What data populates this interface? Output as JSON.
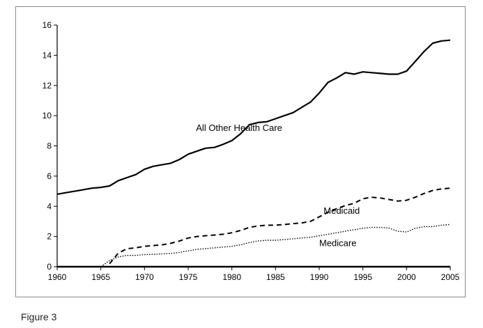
{
  "caption": "Figure 3",
  "chart_data": {
    "type": "line",
    "title": "",
    "xlabel": "",
    "ylabel": "",
    "xlim": [
      1960,
      2005
    ],
    "ylim": [
      0,
      16
    ],
    "xticks": [
      1960,
      1965,
      1970,
      1975,
      1980,
      1985,
      1990,
      1995,
      2000,
      2005
    ],
    "yticks": [
      0,
      2,
      4,
      6,
      8,
      10,
      12,
      14,
      16
    ],
    "grid": false,
    "legend": "none",
    "series": [
      {
        "name": "All Other Health Care",
        "style": "solid",
        "x": [
          1960,
          1961,
          1962,
          1963,
          1964,
          1965,
          1966,
          1967,
          1968,
          1969,
          1970,
          1971,
          1972,
          1973,
          1974,
          1975,
          1976,
          1977,
          1978,
          1979,
          1980,
          1981,
          1982,
          1983,
          1984,
          1985,
          1986,
          1987,
          1988,
          1989,
          1990,
          1991,
          1992,
          1993,
          1994,
          1995,
          1996,
          1997,
          1998,
          1999,
          2000,
          2001,
          2002,
          2003,
          2004,
          2005
        ],
        "y": [
          4.8,
          4.9,
          5.0,
          5.1,
          5.2,
          5.25,
          5.35,
          5.7,
          5.9,
          6.1,
          6.45,
          6.65,
          6.75,
          6.85,
          7.1,
          7.45,
          7.65,
          7.85,
          7.9,
          8.1,
          8.35,
          8.8,
          9.4,
          9.55,
          9.6,
          9.8,
          10.0,
          10.2,
          10.55,
          10.9,
          11.5,
          12.2,
          12.5,
          12.85,
          12.75,
          12.9,
          12.85,
          12.8,
          12.75,
          12.75,
          12.95,
          13.6,
          14.25,
          14.8,
          14.95,
          15.0
        ]
      },
      {
        "name": "Medicaid",
        "style": "dashed",
        "x": [
          1966,
          1967,
          1968,
          1969,
          1970,
          1971,
          1972,
          1973,
          1974,
          1975,
          1976,
          1977,
          1978,
          1979,
          1980,
          1981,
          1982,
          1983,
          1984,
          1985,
          1986,
          1987,
          1988,
          1989,
          1990,
          1991,
          1992,
          1993,
          1994,
          1995,
          1996,
          1997,
          1998,
          1999,
          2000,
          2001,
          2002,
          2003,
          2004,
          2005
        ],
        "y": [
          0.2,
          0.9,
          1.2,
          1.25,
          1.35,
          1.4,
          1.45,
          1.55,
          1.7,
          1.9,
          2.0,
          2.05,
          2.1,
          2.15,
          2.25,
          2.4,
          2.6,
          2.7,
          2.75,
          2.75,
          2.8,
          2.85,
          2.9,
          3.0,
          3.3,
          3.6,
          3.85,
          4.05,
          4.2,
          4.5,
          4.6,
          4.55,
          4.45,
          4.35,
          4.4,
          4.6,
          4.85,
          5.05,
          5.15,
          5.2
        ]
      },
      {
        "name": "Medicare",
        "style": "dotted",
        "x": [
          1965,
          1966,
          1967,
          1968,
          1969,
          1970,
          1971,
          1972,
          1973,
          1974,
          1975,
          1976,
          1977,
          1978,
          1979,
          1980,
          1981,
          1982,
          1983,
          1984,
          1985,
          1986,
          1987,
          1988,
          1989,
          1990,
          1991,
          1992,
          1993,
          1994,
          1995,
          1996,
          1997,
          1998,
          1999,
          2000,
          2001,
          2002,
          2003,
          2004,
          2005
        ],
        "y": [
          0,
          0.4,
          0.65,
          0.75,
          0.75,
          0.8,
          0.82,
          0.85,
          0.88,
          0.95,
          1.05,
          1.15,
          1.2,
          1.25,
          1.3,
          1.35,
          1.45,
          1.6,
          1.7,
          1.75,
          1.75,
          1.8,
          1.85,
          1.9,
          1.95,
          2.05,
          2.15,
          2.25,
          2.35,
          2.45,
          2.55,
          2.6,
          2.6,
          2.55,
          2.35,
          2.3,
          2.55,
          2.65,
          2.65,
          2.75,
          2.8
        ]
      }
    ],
    "annotations": [
      {
        "text": "All Other Health Care",
        "x": 1975.9,
        "y": 9.0
      },
      {
        "text": "Medicaid",
        "x": 1990.5,
        "y": 3.5
      },
      {
        "text": "Medicare",
        "x": 1990.0,
        "y": 1.35
      }
    ]
  }
}
